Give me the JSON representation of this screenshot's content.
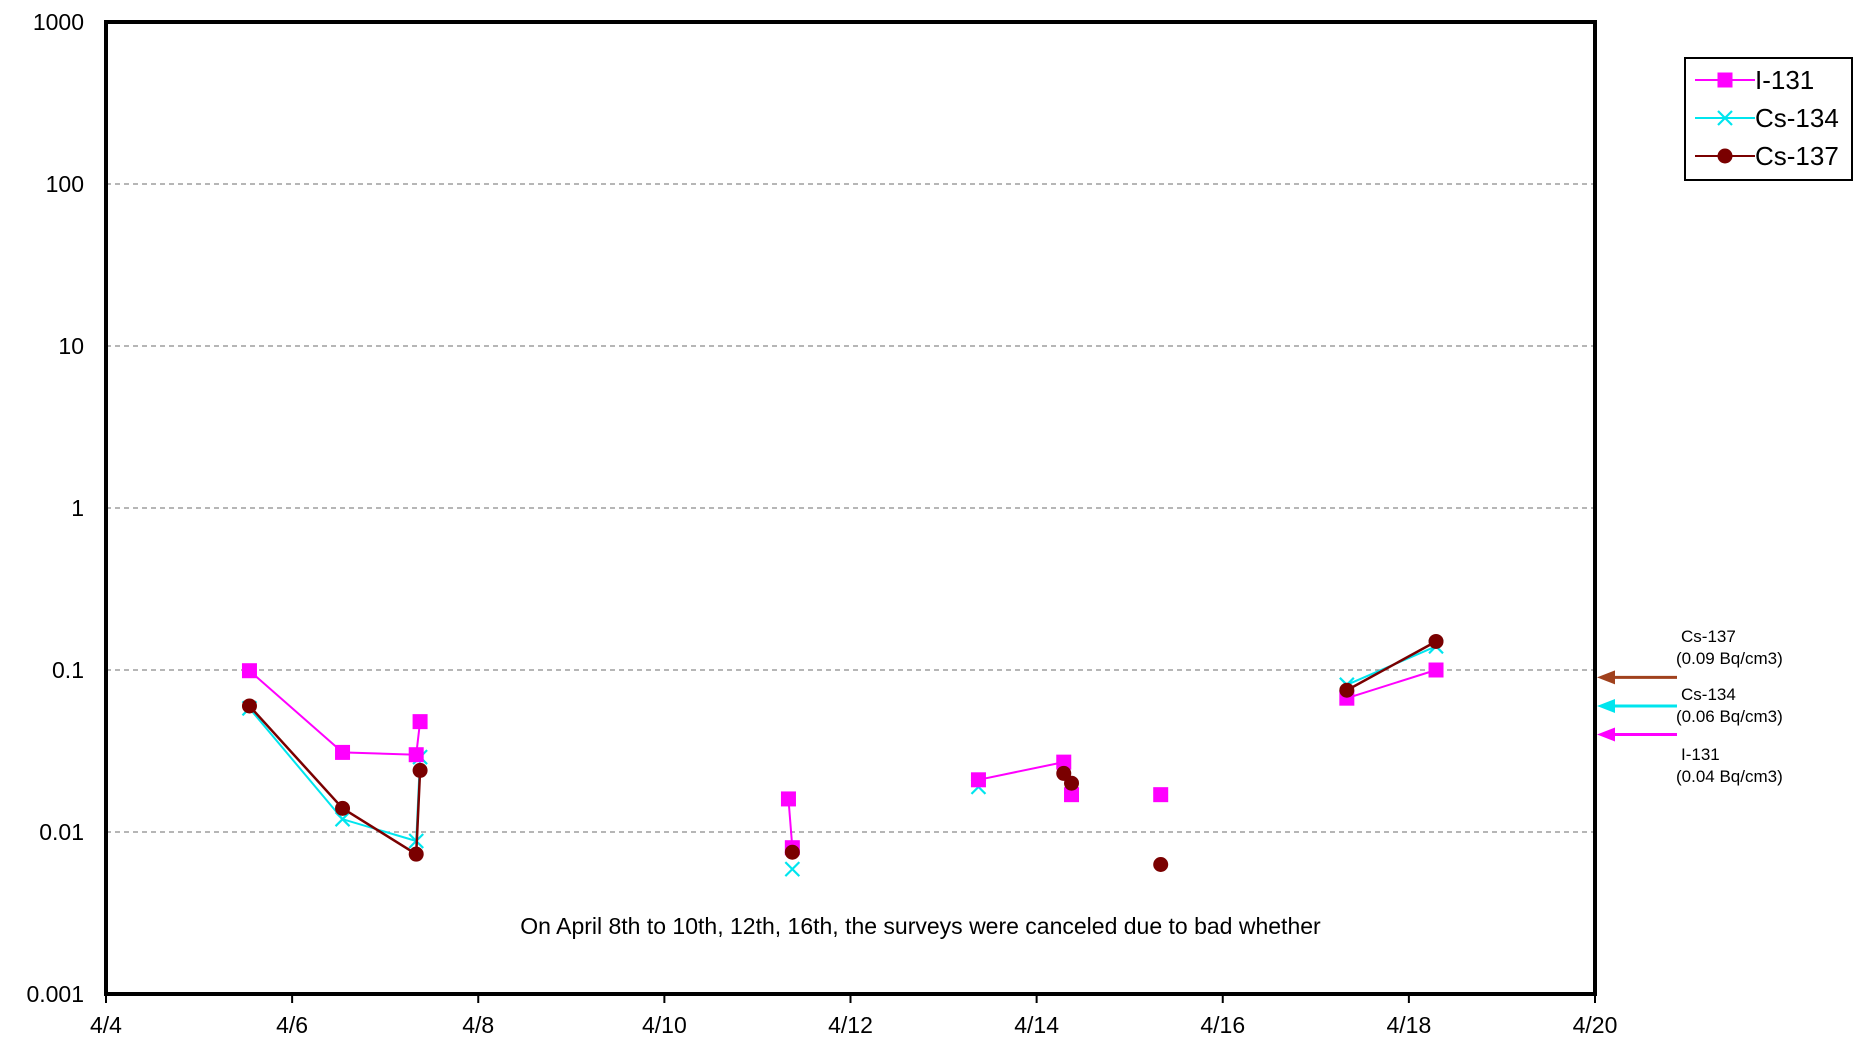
{
  "chart_data": {
    "type": "line",
    "y_scale": "log",
    "ylim": [
      0.001,
      1000
    ],
    "y_ticks": [
      1000,
      100,
      10,
      1,
      0.1,
      0.01,
      0.001
    ],
    "y_tick_labels": [
      "1000",
      "100",
      "10",
      "1",
      "0.1",
      "0.01",
      "0.001"
    ],
    "x_range": [
      "4/4",
      "4/20"
    ],
    "x_tick_labels": [
      "4/4",
      "4/6",
      "4/8",
      "4/10",
      "4/12",
      "4/14",
      "4/16",
      "4/18",
      "4/20"
    ],
    "grid": "horizontal dashed at decades",
    "legend_position": "top-right",
    "colors": {
      "I-131": "#ff00ff",
      "Cs-134": "#00e5ee",
      "Cs-137": "#7a0000"
    },
    "series": [
      {
        "name": "I-131",
        "marker": "square",
        "segments": [
          [
            [
              "4/5 13:00",
              0.099
            ],
            [
              "4/6 13:00",
              0.031
            ],
            [
              "4/7 08:00",
              0.03
            ],
            [
              "4/7 09:00",
              0.048
            ]
          ],
          [
            [
              "4/11 08:00",
              0.016
            ],
            [
              "4/11 09:00",
              0.008
            ]
          ],
          [
            [
              "4/13 09:00",
              0.021
            ],
            [
              "4/14 07:00",
              0.027
            ],
            [
              "4/14 09:00",
              0.017
            ]
          ],
          [
            [
              "4/15 08:00",
              0.017
            ]
          ],
          [
            [
              "4/17 08:00",
              0.067
            ],
            [
              "4/18 07:00",
              0.1
            ]
          ]
        ]
      },
      {
        "name": "Cs-134",
        "marker": "x",
        "segments": [
          [
            [
              "4/5 13:00",
              0.058
            ],
            [
              "4/6 13:00",
              0.012
            ],
            [
              "4/7 08:00",
              0.0088
            ],
            [
              "4/7 09:00",
              0.029
            ]
          ],
          [
            [
              "4/11 09:00",
              0.0059
            ]
          ],
          [
            [
              "4/13 09:00",
              0.019
            ]
          ],
          [
            [
              "4/17 08:00",
              0.081
            ],
            [
              "4/18 07:00",
              0.14
            ]
          ]
        ]
      },
      {
        "name": "Cs-137",
        "marker": "circle",
        "segments": [
          [
            [
              "4/5 13:00",
              0.06
            ],
            [
              "4/6 13:00",
              0.014
            ],
            [
              "4/7 08:00",
              0.0073
            ],
            [
              "4/7 09:00",
              0.024
            ]
          ],
          [
            [
              "4/11 09:00",
              0.0075
            ]
          ],
          [
            [
              "4/14 07:00",
              0.023
            ],
            [
              "4/14 09:00",
              0.02
            ]
          ],
          [
            [
              "4/15 08:00",
              0.0063
            ]
          ],
          [
            [
              "4/17 08:00",
              0.075
            ],
            [
              "4/18 07:00",
              0.15
            ]
          ]
        ]
      }
    ],
    "annotation": "On April 8th to 10th, 12th, 16th, the surveys were canceled due to bad whether",
    "reference_levels": [
      {
        "name": "Cs-137",
        "label": "(0.09  Bq/cm3)",
        "value": 0.09,
        "color": "#a0411d"
      },
      {
        "name": "Cs-134",
        "label": "(0.06  Bq/cm3)",
        "value": 0.06,
        "color": "#00e5ee"
      },
      {
        "name": "I-131",
        "label": "(0.04  Bq/cm3)",
        "value": 0.04,
        "color": "#ff00ff"
      }
    ]
  }
}
